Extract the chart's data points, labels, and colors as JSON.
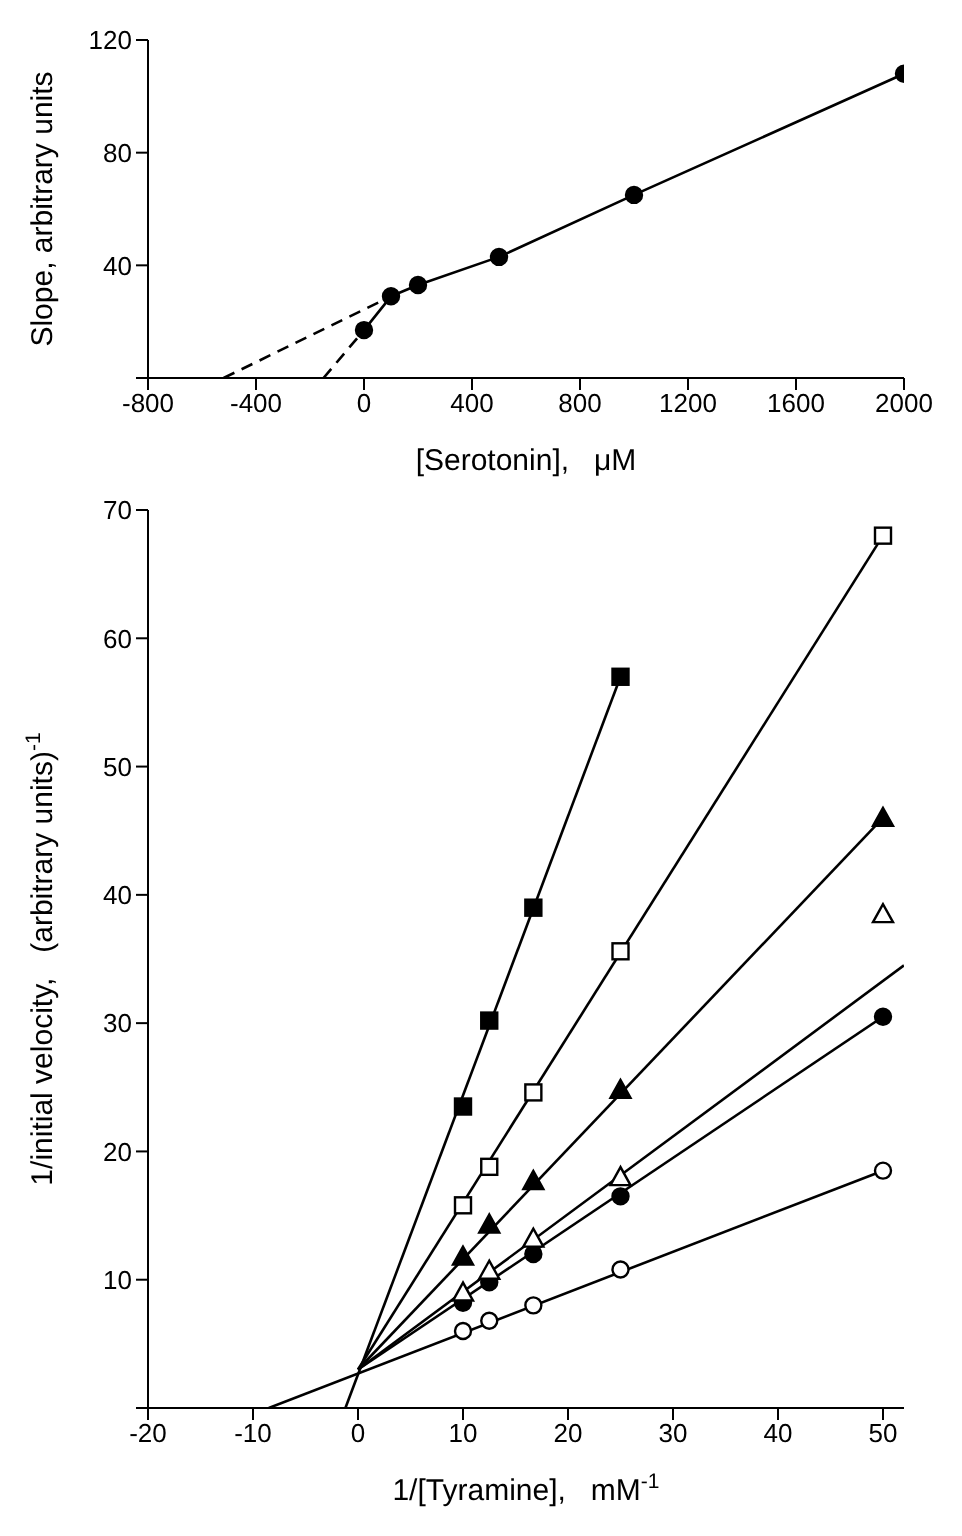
{
  "chart_data": [
    {
      "type": "line",
      "xlabel": "[Serotonin],   μM",
      "ylabel": "Slope, arbitrary units",
      "xlim": [
        -800,
        2000
      ],
      "xticks": [
        -800,
        -400,
        0,
        400,
        800,
        1200,
        1600,
        2000
      ],
      "ylim": [
        0,
        120
      ],
      "yticks": [
        {
          "value": 0,
          "label": null
        },
        40,
        80,
        120
      ],
      "series": [
        {
          "color": "#000000",
          "line_style": "dashed",
          "x": [
            -520,
            100
          ],
          "values": [
            0,
            29
          ]
        },
        {
          "color": "#000000",
          "line_style": "dashed",
          "x": [
            -150,
            0
          ],
          "values": [
            0,
            17
          ]
        },
        {
          "color": "#000000",
          "marker": "circle",
          "line_style": "solid",
          "x": [
            0,
            100,
            200,
            500,
            1000,
            2000
          ],
          "values": [
            17,
            29,
            33,
            43,
            65,
            108
          ]
        }
      ]
    },
    {
      "type": "scatter",
      "xlabel": "1/[Tyramine],   mM$^{-1}$",
      "ylabel": "1/initial velocity,   (arbitrary units)$^{-1}$",
      "xlim": [
        -20,
        52
      ],
      "xticks": [
        -20,
        -10,
        0,
        10,
        20,
        30,
        40,
        50
      ],
      "ylim": [
        0,
        70
      ],
      "yticks": [
        {
          "value": 0,
          "label": null
        },
        10,
        20,
        30,
        40,
        50,
        60,
        70
      ],
      "series": [
        {
          "type": "line",
          "color": "#000000",
          "line_style": "solid",
          "x": [
            -8.5,
            50
          ],
          "values": [
            0,
            18.5
          ]
        },
        {
          "type": "line",
          "color": "#000000",
          "line_style": "solid",
          "x": [
            0,
            50
          ],
          "values": [
            3,
            30.5
          ]
        },
        {
          "type": "line",
          "color": "#000000",
          "line_style": "solid",
          "x": [
            0,
            52
          ],
          "values": [
            3,
            34.5
          ]
        },
        {
          "type": "line",
          "color": "#000000",
          "line_style": "solid",
          "x": [
            0,
            50
          ],
          "values": [
            3,
            46
          ]
        },
        {
          "type": "line",
          "color": "#000000",
          "line_style": "solid",
          "x": [
            0,
            50
          ],
          "values": [
            3,
            68
          ]
        },
        {
          "type": "line",
          "color": "#000000",
          "line_style": "solid",
          "x": [
            -1.2,
            25
          ],
          "values": [
            0,
            57
          ]
        },
        {
          "color": "#ffffff",
          "marker": "circle",
          "x": [
            10,
            12.5,
            16.7,
            25,
            50
          ],
          "values": [
            6,
            6.8,
            8,
            10.8,
            18.5
          ]
        },
        {
          "color": "#000000",
          "marker": "circle",
          "x": [
            10,
            12.5,
            16.7,
            25,
            50
          ],
          "values": [
            8.2,
            9.8,
            12,
            16.5,
            30.5
          ]
        },
        {
          "color": "#ffffff",
          "marker": "triangle",
          "x": [
            10,
            12.5,
            16.7,
            25,
            50
          ],
          "values": [
            9,
            10.7,
            13.2,
            18,
            38.5
          ]
        },
        {
          "color": "#000000",
          "marker": "triangle",
          "x": [
            10,
            12.5,
            16.7,
            25,
            50
          ],
          "values": [
            11.8,
            14.3,
            17.7,
            24.8,
            46
          ]
        },
        {
          "color": "#ffffff",
          "marker": "square",
          "x": [
            10,
            12.5,
            16.7,
            25,
            50
          ],
          "values": [
            15.8,
            18.8,
            24.6,
            35.6,
            68
          ]
        },
        {
          "color": "#000000",
          "marker": "square",
          "x": [
            10,
            12.5,
            16.7,
            25
          ],
          "values": [
            23.5,
            30.2,
            39,
            57
          ]
        }
      ]
    }
  ]
}
